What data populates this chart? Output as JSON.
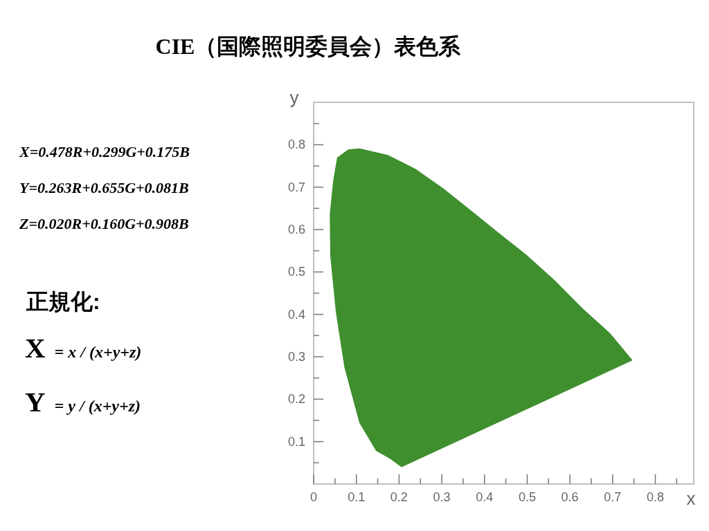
{
  "chart_data": {
    "type": "area",
    "title": "CIE（国際照明委員会）表色系",
    "xlabel": "x",
    "ylabel": "y",
    "x": [
      0.206,
      0.18,
      0.147,
      0.108,
      0.073,
      0.053,
      0.04,
      0.039,
      0.047,
      0.056,
      0.082,
      0.108,
      0.173,
      0.238,
      0.303,
      0.368,
      0.433,
      0.498,
      0.563,
      0.628,
      0.693,
      0.745,
      0.206
    ],
    "series": [
      {
        "color": "#3f8f2f",
        "values": [
          0.041,
          0.06,
          0.079,
          0.145,
          0.276,
          0.407,
          0.539,
          0.637,
          0.716,
          0.769,
          0.788,
          0.79,
          0.775,
          0.742,
          0.696,
          0.644,
          0.591,
          0.539,
          0.48,
          0.414,
          0.355,
          0.292,
          0.041
        ]
      }
    ],
    "xlim": [
      0,
      0.89
    ],
    "ylim": [
      0,
      0.9
    ],
    "xticks": [
      0,
      {
        "value": 0.05,
        "label": null
      },
      0.1,
      {
        "value": 0.15,
        "label": null
      },
      0.2,
      {
        "value": 0.25,
        "label": null
      },
      0.3,
      {
        "value": 0.35,
        "label": null
      },
      0.4,
      {
        "value": 0.45,
        "label": null
      },
      0.5,
      {
        "value": 0.55,
        "label": null
      },
      0.6,
      {
        "value": 0.65,
        "label": null
      },
      0.7,
      {
        "value": 0.75,
        "label": null
      },
      0.8,
      {
        "value": 0.85,
        "label": null
      }
    ],
    "yticks": [
      {
        "value": 0.05,
        "label": null
      },
      0.1,
      {
        "value": 0.15,
        "label": null
      },
      0.2,
      {
        "value": 0.25,
        "label": null
      },
      0.3,
      {
        "value": 0.35,
        "label": null
      },
      0.4,
      {
        "value": 0.45,
        "label": null
      },
      0.5,
      {
        "value": 0.55,
        "label": null
      },
      0.6,
      {
        "value": 0.65,
        "label": null
      },
      0.7,
      {
        "value": 0.75,
        "label": null
      },
      0.8,
      {
        "value": 0.85,
        "label": null
      }
    ],
    "annotations": [
      "X=0.478R+0.299G+0.175B",
      "Y=0.263R+0.655G+0.081B",
      "Z=0.020R+0.160G+0.908B",
      "正規化:",
      "**X** = *x / (x+y+z)*",
      "**Y** = *y / (x+y+z)*"
    ]
  }
}
